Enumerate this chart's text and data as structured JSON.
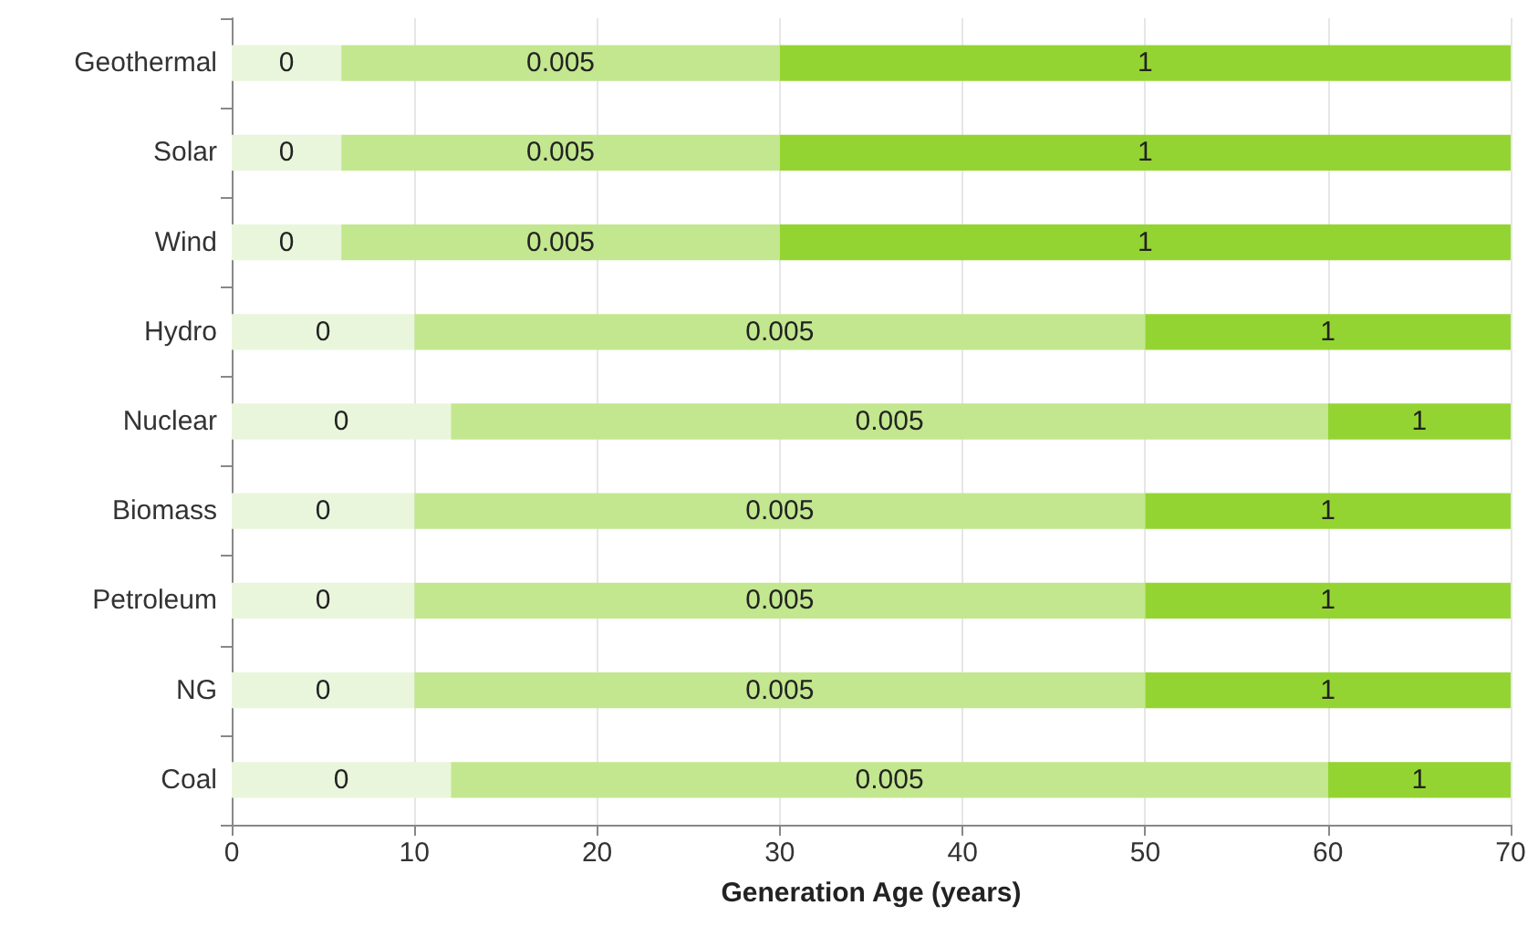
{
  "chart_data": {
    "type": "bar",
    "orientation": "horizontal",
    "stacked": true,
    "xlabel": "Generation Age (years)",
    "categories": [
      "Geothermal",
      "Solar",
      "Wind",
      "Hydro",
      "Nuclear",
      "Biomass",
      "Petroleum",
      "NG",
      "Coal"
    ],
    "series": [
      {
        "name": "0",
        "color": "#e9f6dc",
        "values": [
          6,
          6,
          6,
          10,
          12,
          10,
          10,
          10,
          12
        ]
      },
      {
        "name": "0.005",
        "color": "#c3e78f",
        "values": [
          24,
          24,
          24,
          40,
          48,
          40,
          40,
          40,
          48
        ]
      },
      {
        "name": "1",
        "color": "#94d432",
        "values": [
          40,
          40,
          40,
          20,
          10,
          20,
          20,
          20,
          10
        ]
      }
    ],
    "xlim": [
      0,
      70
    ],
    "xticks": [
      0,
      10,
      20,
      30,
      40,
      50,
      60,
      70
    ],
    "grid": "x"
  }
}
